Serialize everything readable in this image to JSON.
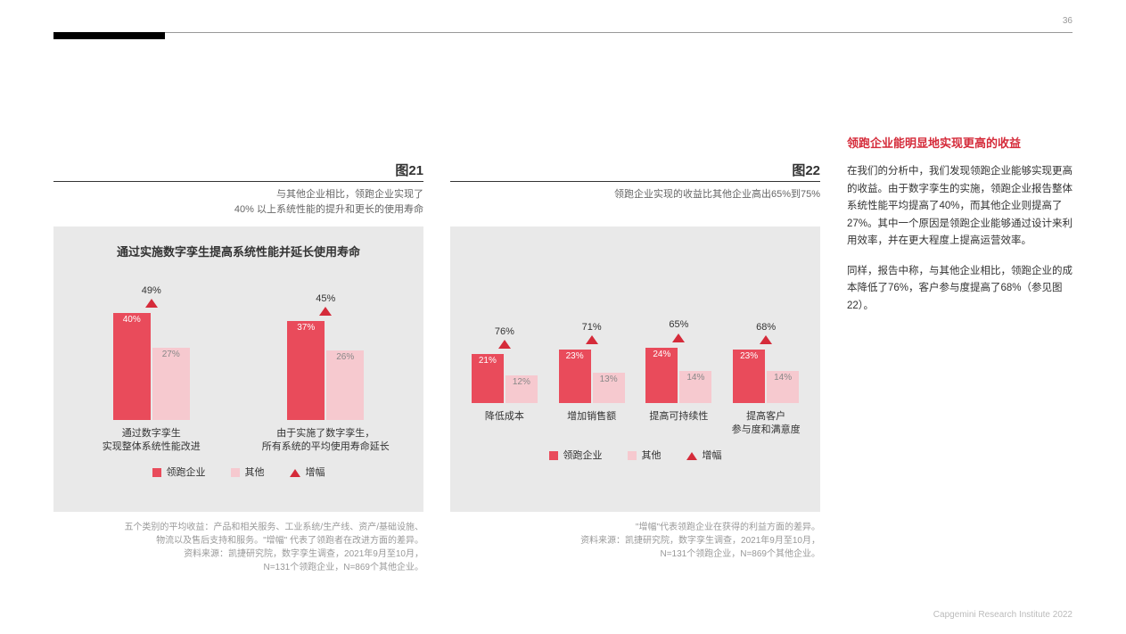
{
  "page_number": "36",
  "footer": "Capgemini Research Institute 2022",
  "colors": {
    "leader": "#e94b5b",
    "other": "#f6c9cf",
    "uplift": "#d52b3a",
    "panel_bg": "#e9e9e9"
  },
  "chart21": {
    "label": "图21",
    "subtitle_l1": "与其他企业相比，领跑企业实现了",
    "subtitle_l2": "40% 以上系统性能的提升和更长的使用寿命",
    "title": "通过实施数字孪生提高系统性能并延长使用寿命",
    "type": "grouped-bar-with-uplift",
    "y_max": 50,
    "groups": [
      {
        "uplift": "49%",
        "leader": "40%",
        "other": "27%",
        "leader_h": 40,
        "other_h": 27,
        "cat_l1": "通过数字孪生",
        "cat_l2": "实现整体系统性能改进"
      },
      {
        "uplift": "45%",
        "leader": "37%",
        "other": "26%",
        "leader_h": 37,
        "other_h": 26,
        "cat_l1": "由于实施了数字孪生，",
        "cat_l2": "所有系统的平均使用寿命延长"
      }
    ],
    "legend": {
      "leader": "领跑企业",
      "other": "其他",
      "uplift": "增幅"
    },
    "footnote_l1": "五个类别的平均收益：产品和相关服务、工业系统/生产线、资产/基础设施、",
    "footnote_l2": "物流以及售后支持和服务。\"增幅\" 代表了领跑者在改进方面的差异。",
    "footnote_l3": "资料来源：凯捷研究院，数字孪生调查，2021年9月至10月，",
    "footnote_l4": "N=131个领跑企业，N=869个其他企业。"
  },
  "chart22": {
    "label": "图22",
    "subtitle_l1": "领跑企业实现的收益比其他企业高出65%到75%",
    "subtitle_l2": "",
    "title": "",
    "type": "grouped-bar-with-uplift",
    "y_max": 30,
    "groups": [
      {
        "uplift": "76%",
        "leader": "21%",
        "other": "12%",
        "leader_h": 21,
        "other_h": 12,
        "cat_l1": "降低成本",
        "cat_l2": ""
      },
      {
        "uplift": "71%",
        "leader": "23%",
        "other": "13%",
        "leader_h": 23,
        "other_h": 13,
        "cat_l1": "增加销售额",
        "cat_l2": ""
      },
      {
        "uplift": "65%",
        "leader": "24%",
        "other": "14%",
        "leader_h": 24,
        "other_h": 14,
        "cat_l1": "提高可持续性",
        "cat_l2": ""
      },
      {
        "uplift": "68%",
        "leader": "23%",
        "other": "14%",
        "leader_h": 23,
        "other_h": 14,
        "cat_l1": "提高客户",
        "cat_l2": "参与度和满意度"
      }
    ],
    "legend": {
      "leader": "领跑企业",
      "other": "其他",
      "uplift": "增幅"
    },
    "footnote_l1": "\"增幅\"代表领跑企业在获得的利益方面的差异。",
    "footnote_l2": "资料来源：凯捷研究院，数字孪生调查，2021年9月至10月，",
    "footnote_l3": "N=131个领跑企业，N=869个其他企业。",
    "footnote_l4": ""
  },
  "text": {
    "heading": "领跑企业能明显地实现更高的收益",
    "p1": "在我们的分析中，我们发现领跑企业能够实现更高的收益。由于数字孪生的实施，领跑企业报告整体系统性能平均提高了40%，而其他企业则提高了27%。其中一个原因是领跑企业能够通过设计来利用效率，并在更大程度上提高运营效率。",
    "p2": "同样，报告中称，与其他企业相比，领跑企业的成本降低了76%，客户参与度提高了68%（参见图 22）。"
  }
}
